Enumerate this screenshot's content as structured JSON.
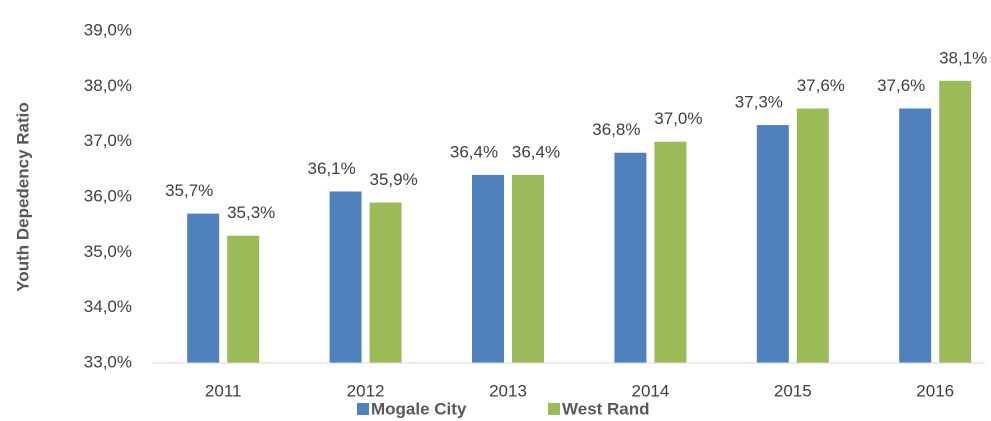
{
  "chart_data": {
    "type": "bar",
    "y_label": "Youth Depedency Ratio",
    "categories": [
      "2011",
      "2012",
      "2013",
      "2014",
      "2015",
      "2016"
    ],
    "series": [
      {
        "name": "Mogale City",
        "color": "#4f81bd",
        "values": [
          35.7,
          36.1,
          36.4,
          36.8,
          37.3,
          37.6
        ],
        "value_labels": [
          "35,7%",
          "36,1%",
          "36,4%",
          "36,8%",
          "37,3%",
          "37,6%"
        ]
      },
      {
        "name": "West Rand",
        "color": "#9bbb59",
        "values": [
          35.3,
          35.9,
          36.4,
          37.0,
          37.6,
          38.1
        ],
        "value_labels": [
          "35,3%",
          "35,9%",
          "36,4%",
          "37,0%",
          "37,6%",
          "38,1%"
        ]
      }
    ],
    "ylim": [
      33,
      39
    ],
    "yticks": [
      {
        "value": 33,
        "label": "33,0%"
      },
      {
        "value": 34,
        "label": "34,0%"
      },
      {
        "value": 35,
        "label": "35,0%"
      },
      {
        "value": 36,
        "label": "36,0%"
      },
      {
        "value": 37,
        "label": "37,0%"
      },
      {
        "value": 38,
        "label": "38,0%"
      },
      {
        "value": 39,
        "label": "39,0%"
      }
    ],
    "grid": false,
    "legend": "bottom"
  }
}
